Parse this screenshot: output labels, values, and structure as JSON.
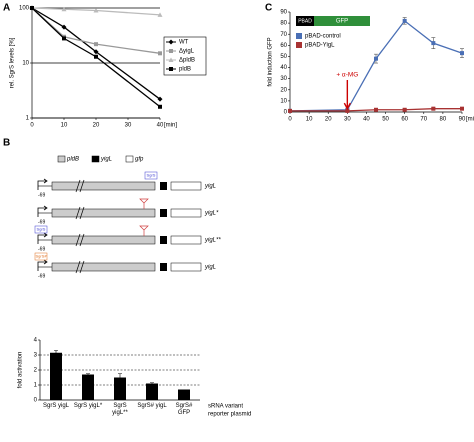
{
  "panels": [
    "A",
    "B",
    "C"
  ],
  "diagram": {
    "legend": [
      "pldB",
      "yigL",
      "gfp"
    ],
    "rows": [
      {
        "label": "yigL",
        "start": "-69",
        "site": "SgrS"
      },
      {
        "label": "yigL*",
        "start": "-69"
      },
      {
        "label": "yigL**",
        "start": "-69",
        "site": "SgrS"
      },
      {
        "label": "yigL",
        "start": "-69",
        "site": "SgrS#"
      }
    ]
  },
  "chart_data": [
    {
      "type": "line",
      "ylabel": "rel. SgrS levels [%]",
      "xlabel": "[min]",
      "log_y": true,
      "grid": true,
      "xlim": [
        0,
        40
      ],
      "xticks": [
        0,
        10,
        20,
        30,
        40
      ],
      "ylim": [
        1,
        100
      ],
      "yticks": [
        1,
        10,
        100
      ],
      "x": [
        0,
        10,
        20,
        40
      ],
      "series": [
        {
          "name": "WT",
          "color": "#000000",
          "marker": "diamond",
          "values": [
            100,
            45,
            16,
            2.2
          ]
        },
        {
          "name": "ΔyigL",
          "color": "#999999",
          "marker": "square",
          "values": [
            100,
            30,
            22,
            15
          ]
        },
        {
          "name": "ΔpldB",
          "color": "#bbbbbb",
          "marker": "triangle",
          "values": [
            100,
            95,
            90,
            75
          ]
        },
        {
          "name": "pldB",
          "color": "#000000",
          "marker": "square",
          "values": [
            100,
            28,
            13,
            1.6
          ]
        }
      ]
    },
    {
      "type": "line",
      "ylabel": "fold induction GFP",
      "xlabel": "[min]",
      "grid": false,
      "xlim": [
        0,
        90
      ],
      "xticks": [
        0,
        10,
        20,
        30,
        40,
        50,
        60,
        70,
        80,
        90
      ],
      "ylim": [
        0,
        90
      ],
      "yticks": [
        0,
        10,
        20,
        30,
        40,
        50,
        60,
        70,
        80,
        90
      ],
      "x": [
        0,
        30,
        45,
        60,
        75,
        90
      ],
      "inset": [
        "PBAD",
        "GFP"
      ],
      "annotation": "+ α-MG",
      "series": [
        {
          "name": "pBAD-control",
          "color": "#4a6fb5",
          "marker": "square",
          "values": [
            1,
            2,
            48,
            82,
            62,
            53
          ],
          "errors": [
            0,
            0,
            4,
            3,
            5,
            4
          ]
        },
        {
          "name": "pBAD-YigL",
          "color": "#a83232",
          "marker": "square",
          "values": [
            1,
            1,
            2,
            2,
            3,
            3
          ],
          "errors": [
            0,
            0,
            1,
            1,
            1,
            1
          ]
        }
      ]
    },
    {
      "type": "bar",
      "ylabel": "fold activation",
      "color": "#000000",
      "grid": true,
      "ylim": [
        0,
        4
      ],
      "yticks": [
        0,
        1,
        2,
        3,
        4
      ],
      "categories": [
        "SgrS yigL",
        "SgrS yigL*",
        "SgrS yigL**",
        "SgrS# yigL",
        "SgrS# GFP"
      ],
      "values": [
        3.15,
        1.7,
        1.5,
        1.1,
        0.7
      ],
      "errors": [
        0.15,
        0.05,
        0.25,
        0.05,
        0
      ],
      "legend": [
        "sRNA variant",
        "reporter plasmid"
      ]
    }
  ]
}
